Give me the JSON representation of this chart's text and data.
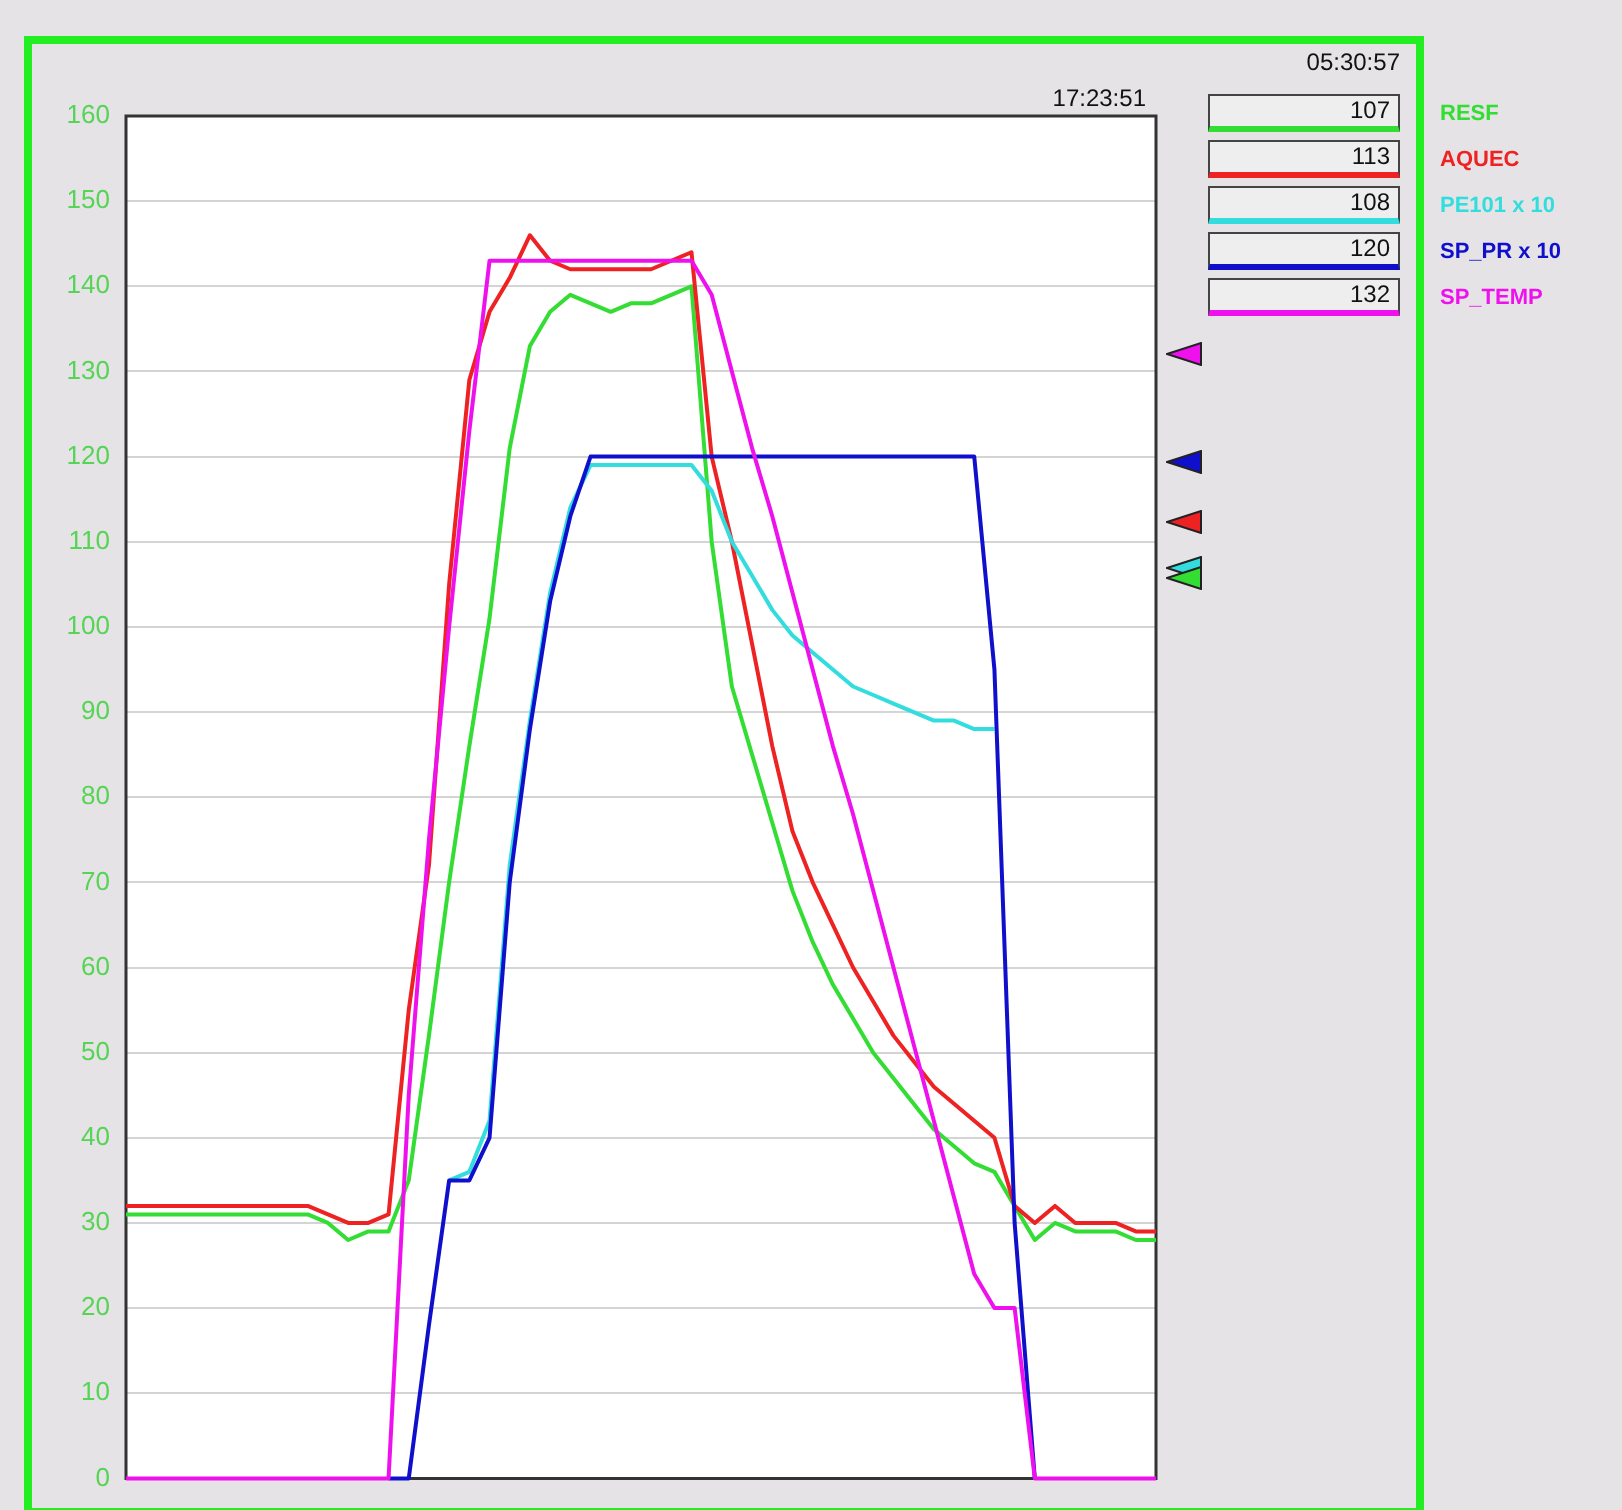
{
  "chart_data": {
    "type": "line",
    "categories": [
      null,
      null,
      null,
      null,
      null,
      null,
      null,
      null,
      null,
      null,
      null,
      null,
      null,
      null,
      null,
      null,
      null,
      null,
      null,
      null,
      null,
      null,
      null,
      null,
      null,
      null,
      null,
      null,
      null,
      null,
      null,
      null,
      null,
      null,
      null,
      null,
      null,
      null,
      null,
      null,
      null,
      null,
      null,
      null,
      null,
      null,
      null,
      null,
      null,
      null,
      null,
      null
    ],
    "series": [
      {
        "name": "RESF",
        "color": "#33dd33",
        "values": [
          31,
          31,
          31,
          31,
          31,
          31,
          31,
          31,
          31,
          31,
          30,
          28,
          29,
          29,
          35,
          52,
          70,
          86,
          101,
          121,
          133,
          137,
          139,
          138,
          137,
          138,
          138,
          139,
          140,
          110,
          93,
          85,
          77,
          69,
          63,
          58,
          54,
          50,
          47,
          44,
          41,
          39,
          37,
          36,
          32,
          28,
          30,
          29,
          29,
          29,
          28,
          28
        ]
      },
      {
        "name": "AQUEC",
        "color": "#ee2222",
        "values": [
          32,
          32,
          32,
          32,
          32,
          32,
          32,
          32,
          32,
          32,
          31,
          30,
          30,
          31,
          55,
          72,
          105,
          129,
          137,
          141,
          146,
          143,
          142,
          142,
          142,
          142,
          142,
          143,
          144,
          120,
          110,
          98,
          86,
          76,
          70,
          65,
          60,
          56,
          52,
          49,
          46,
          44,
          42,
          40,
          32,
          30,
          32,
          30,
          30,
          30,
          29,
          29
        ]
      },
      {
        "name": "PE101 x 10",
        "color": "#33dddd",
        "values": [
          null,
          null,
          null,
          null,
          null,
          null,
          null,
          null,
          null,
          null,
          null,
          null,
          null,
          null,
          null,
          null,
          35,
          36,
          42,
          72,
          89,
          104,
          114,
          119,
          119,
          119,
          119,
          119,
          119,
          116,
          110,
          106,
          102,
          99,
          97,
          95,
          93,
          92,
          91,
          90,
          89,
          89,
          88,
          88,
          null,
          null,
          null,
          null,
          null,
          null,
          null,
          null
        ]
      },
      {
        "name": "SP_PR x 10",
        "color": "#1010cc",
        "values": [
          null,
          null,
          null,
          null,
          null,
          null,
          null,
          null,
          null,
          null,
          null,
          null,
          null,
          0,
          0,
          18,
          35,
          35,
          40,
          70,
          88,
          103,
          113,
          120,
          120,
          120,
          120,
          120,
          120,
          120,
          120,
          120,
          120,
          120,
          120,
          120,
          120,
          120,
          120,
          120,
          120,
          120,
          120,
          95,
          30,
          0,
          null,
          null,
          null,
          null,
          null,
          null
        ]
      },
      {
        "name": "SP_TEMP",
        "color": "#ee11ee",
        "values": [
          0,
          0,
          0,
          0,
          0,
          0,
          0,
          0,
          0,
          0,
          0,
          0,
          0,
          0,
          45,
          75,
          100,
          123,
          143,
          143,
          143,
          143,
          143,
          143,
          143,
          143,
          143,
          143,
          143,
          139,
          130,
          121,
          113,
          104,
          95,
          86,
          78,
          69,
          60,
          51,
          42,
          33,
          24,
          20,
          20,
          0,
          0,
          0,
          0,
          0,
          0,
          0
        ]
      }
    ],
    "ylim": [
      0,
      160
    ],
    "yticks": [
      0,
      10,
      20,
      30,
      40,
      50,
      60,
      70,
      80,
      90,
      100,
      110,
      120,
      130,
      140,
      150,
      160
    ],
    "grid": "y",
    "legend": "top right",
    "annotations": [
      "05:30:57",
      "17:23:51",
      "107",
      "113",
      "108",
      "120",
      "132"
    ]
  }
}
